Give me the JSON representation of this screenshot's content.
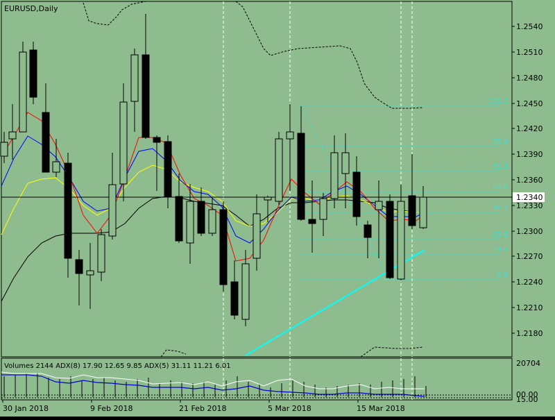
{
  "window": {
    "title": "EURUSD,Daily"
  },
  "colors": {
    "background": "#8fbc8f",
    "axis": "#000000",
    "grid_vertical": "#ffffff",
    "fib": "#40e0d0",
    "trendline": "#00ffff",
    "ma_red": "#ff0000",
    "ma_blue": "#0000ff",
    "ma_yellow": "#ffff00",
    "ma_black": "#000000",
    "volume_bar": "#000000",
    "adx8": "#0000cd",
    "adx5": "#ffffff"
  },
  "price_axis": {
    "labels": [
      "1.2540",
      "1.2510",
      "1.2480",
      "1.2450",
      "1.2420",
      "1.2390",
      "1.2360",
      "1.2330",
      "1.2300",
      "1.2270",
      "1.2240",
      "1.2210",
      "1.2180"
    ],
    "current_price": "1.2340"
  },
  "time_axis": {
    "labels": [
      "30 Jan 2018",
      "9 Feb 2018",
      "21 Feb 2018",
      "5 Mar 2018",
      "15 Mar 2018"
    ]
  },
  "fibonacci": {
    "levels": [
      "100.0",
      "76.4",
      "61.8",
      "50.0",
      "38.2",
      "23.6",
      "14.6",
      "0.0"
    ]
  },
  "indicator": {
    "label": "Volumes 2144 ADX(8) 17.90 12.65 9.85 ADX(5) 31.11 11.21 6.01",
    "axis_labels": {
      "top": "20704",
      "mid": "00.00",
      "bottom": "15.00"
    }
  }
}
